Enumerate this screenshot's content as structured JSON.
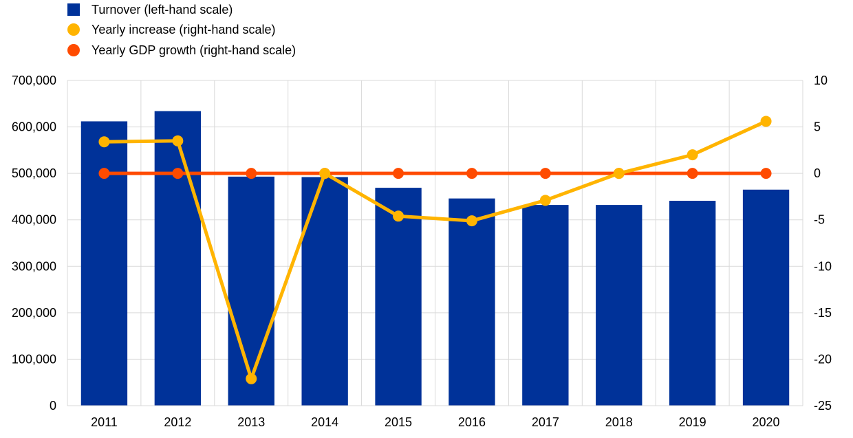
{
  "chart_data": {
    "type": "bar+line",
    "categories": [
      "2011",
      "2012",
      "2013",
      "2014",
      "2015",
      "2016",
      "2017",
      "2018",
      "2019",
      "2020"
    ],
    "series": [
      {
        "name": "Turnover (left-hand scale)",
        "type": "bar",
        "axis": "left",
        "color": "#003299",
        "values": [
          612000,
          634000,
          493000,
          492000,
          469000,
          446000,
          432000,
          432000,
          441000,
          465000
        ]
      },
      {
        "name": "Yearly increase (right-hand scale)",
        "type": "line",
        "axis": "right",
        "color": "#FFB400",
        "values": [
          3.4,
          3.5,
          -22.1,
          0,
          -4.6,
          -5.1,
          -2.9,
          0,
          2.0,
          5.6
        ]
      },
      {
        "name": "Yearly GDP growth (right-hand scale)",
        "type": "line",
        "axis": "right",
        "color": "#FF4B00",
        "values": [
          0,
          0,
          0,
          0,
          0,
          0,
          0,
          0,
          0,
          0
        ]
      }
    ],
    "y_left": {
      "ylim": [
        0,
        700000
      ],
      "ticks": [
        "0",
        "100,000",
        "200,000",
        "300,000",
        "400,000",
        "500,000",
        "600,000",
        "700,000"
      ]
    },
    "y_right": {
      "ylim": [
        -25,
        10
      ],
      "ticks": [
        "-25",
        "-20",
        "-15",
        "-10",
        "-5",
        "0",
        "5",
        "10"
      ]
    },
    "grid": true,
    "legend_position": "top-left"
  }
}
